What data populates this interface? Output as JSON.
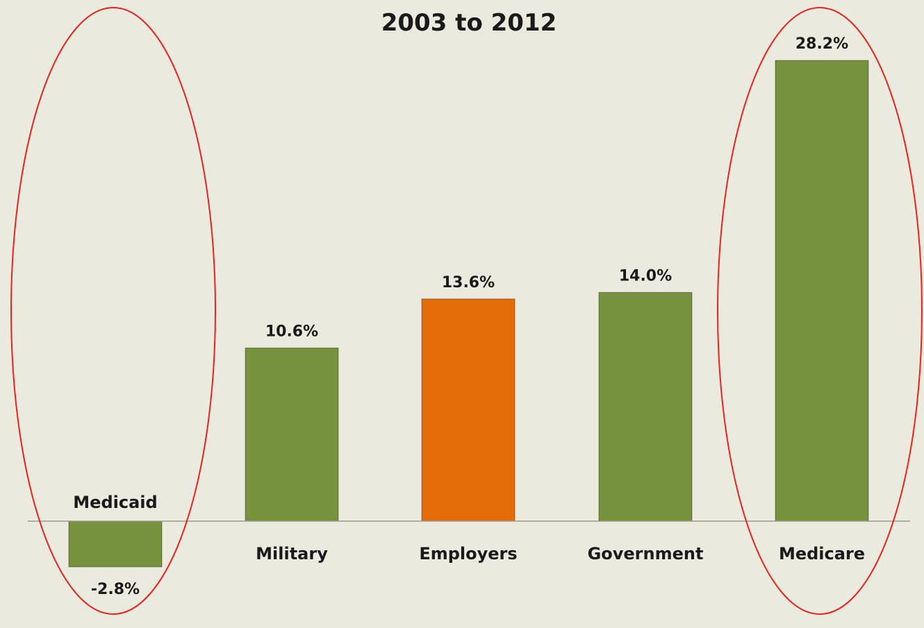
{
  "chart_data": {
    "type": "bar",
    "title": "2003 to 2012",
    "categories": [
      "Medicaid",
      "Military",
      "Employers",
      "Government",
      "Medicare"
    ],
    "values": [
      -2.8,
      10.6,
      13.6,
      14.0,
      28.2
    ],
    "value_labels": [
      "-2.8%",
      "10.6%",
      "13.6%",
      "14.0%",
      "28.2%"
    ],
    "bar_colors": [
      "#76923C",
      "#76923C",
      "#E36C09",
      "#76923C",
      "#76923C"
    ],
    "highlight_color": "#E8231E",
    "highlighted_categories": [
      "Medicaid",
      "Medicare"
    ],
    "xlabel": "",
    "ylabel": "",
    "ylim": [
      -2.8,
      28.2
    ],
    "grid": false,
    "legend": "none"
  }
}
